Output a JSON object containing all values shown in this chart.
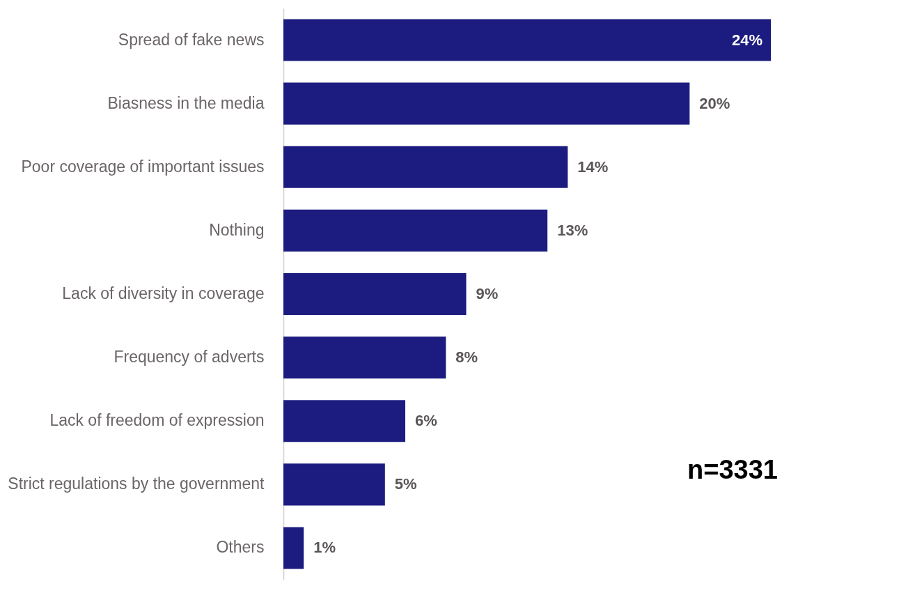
{
  "chart_data": {
    "type": "bar",
    "orientation": "horizontal",
    "categories": [
      "Spread of fake news",
      "Biasness in the media",
      "Poor coverage of important issues",
      "Nothing",
      "Lack of diversity in coverage",
      "Frequency of adverts",
      "Lack of freedom of expression",
      "Strict regulations by the government",
      "Others"
    ],
    "values": [
      24,
      20,
      14,
      13,
      9,
      8,
      6,
      5,
      1
    ],
    "value_labels": [
      "24%",
      "20%",
      "14%",
      "13%",
      "9%",
      "8%",
      "6%",
      "5%",
      "1%"
    ],
    "color": "#1c1c80",
    "tick_labels": "y",
    "annotations": [
      "n=3331"
    ]
  }
}
